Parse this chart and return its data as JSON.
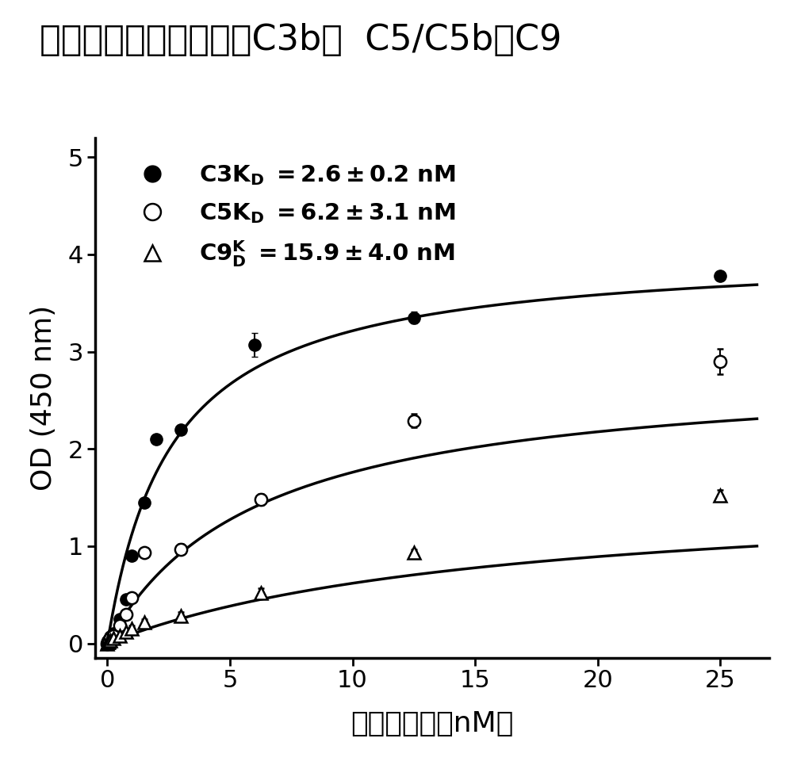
{
  "title": "备解素高亲和性地结合C3b，  C5/C5b和C9",
  "xlabel": "备解素浓度（nM）",
  "ylabel": "OD (450 nm)",
  "xlim": [
    -0.5,
    27
  ],
  "ylim": [
    -0.15,
    5.2
  ],
  "yticks": [
    0,
    1,
    2,
    3,
    4,
    5
  ],
  "xticks": [
    0,
    5,
    10,
    15,
    20,
    25
  ],
  "c3_kd": 2.6,
  "c3_bmax": 4.05,
  "c5_kd": 6.2,
  "c5_bmax": 2.85,
  "c9_kd": 15.9,
  "c9_bmax": 1.6,
  "c3_x": [
    0.0,
    0.016,
    0.031,
    0.063,
    0.125,
    0.25,
    0.5,
    0.75,
    1.0,
    1.5,
    2.0,
    3.0,
    6.0,
    12.5,
    25.0
  ],
  "c3_y": [
    0.0,
    0.01,
    0.02,
    0.04,
    0.07,
    0.1,
    0.25,
    0.45,
    0.9,
    1.45,
    2.1,
    2.2,
    3.07,
    3.35,
    3.78
  ],
  "c3_yerr": [
    0.01,
    0.01,
    0.01,
    0.01,
    0.01,
    0.02,
    0.02,
    0.03,
    0.03,
    0.04,
    0.05,
    0.05,
    0.12,
    0.06,
    0.05
  ],
  "c5_x": [
    0.0,
    0.016,
    0.031,
    0.063,
    0.125,
    0.25,
    0.5,
    0.75,
    1.0,
    1.5,
    3.0,
    6.25,
    12.5,
    25.0
  ],
  "c5_y": [
    0.0,
    0.01,
    0.02,
    0.03,
    0.05,
    0.08,
    0.18,
    0.3,
    0.47,
    0.93,
    0.97,
    1.48,
    2.29,
    2.9
  ],
  "c5_yerr": [
    0.01,
    0.01,
    0.01,
    0.01,
    0.01,
    0.02,
    0.02,
    0.03,
    0.03,
    0.04,
    0.05,
    0.06,
    0.07,
    0.13
  ],
  "c9_x": [
    0.0,
    0.016,
    0.031,
    0.063,
    0.125,
    0.25,
    0.5,
    0.75,
    1.0,
    1.5,
    3.0,
    6.25,
    12.5,
    25.0
  ],
  "c9_y": [
    0.0,
    0.01,
    0.01,
    0.02,
    0.03,
    0.05,
    0.08,
    0.12,
    0.15,
    0.22,
    0.28,
    0.52,
    0.93,
    1.52
  ],
  "c9_yerr": [
    0.01,
    0.01,
    0.01,
    0.01,
    0.01,
    0.02,
    0.02,
    0.02,
    0.03,
    0.03,
    0.04,
    0.05,
    0.04,
    0.06
  ],
  "marker_size": 11,
  "line_width": 2.5,
  "font_size_title": 32,
  "font_size_axis": 26,
  "font_size_tick": 22,
  "font_size_legend": 21,
  "background_color": "#ffffff",
  "line_color": "#000000"
}
